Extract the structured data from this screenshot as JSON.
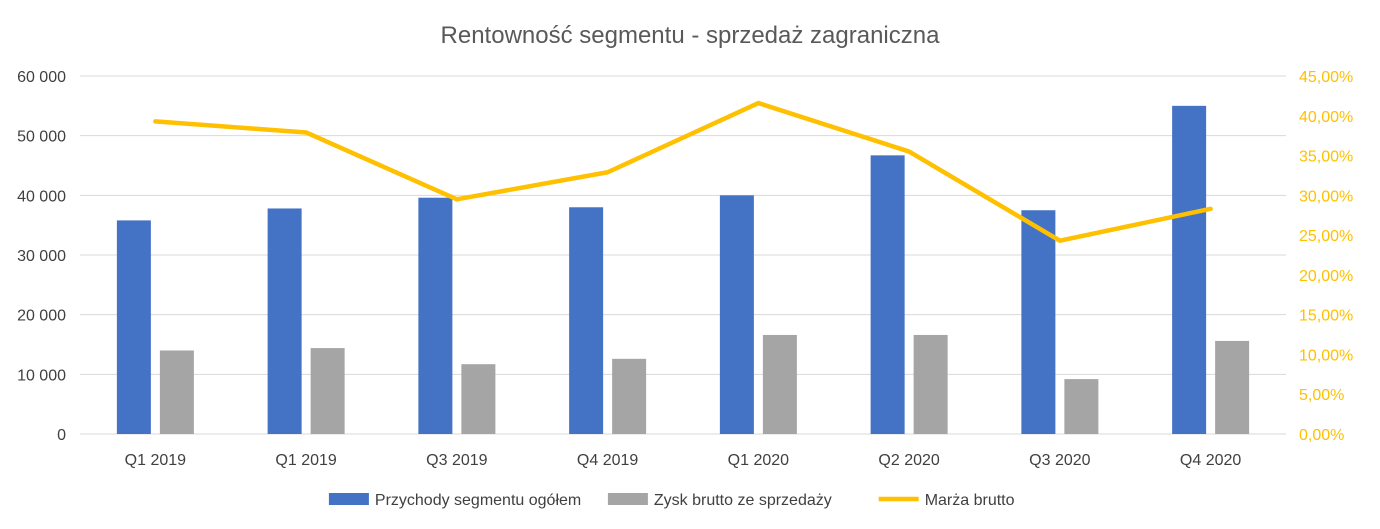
{
  "chart_data": {
    "type": "bar",
    "title": "Rentowność segmentu - sprzedaż zagraniczna",
    "categories": [
      "Q1 2019",
      "Q1 2019",
      "Q3 2019",
      "Q4 2019",
      "Q1 2020",
      "Q2 2020",
      "Q3 2020",
      "Q4 2020"
    ],
    "series": [
      {
        "name": "Przychody segmentu ogółem",
        "kind": "bar",
        "axis": "left",
        "color": "#4472C4",
        "values": [
          35800,
          37800,
          39600,
          38000,
          40000,
          46700,
          37500,
          55000
        ]
      },
      {
        "name": "Zysk brutto ze sprzedaży",
        "kind": "bar",
        "axis": "left",
        "color": "#A5A5A5",
        "values": [
          14000,
          14400,
          11700,
          12600,
          16600,
          16600,
          9200,
          15600
        ]
      },
      {
        "name": "Marża brutto",
        "kind": "line",
        "axis": "right",
        "color": "#FFC000",
        "values": [
          39.3,
          37.9,
          29.5,
          32.9,
          41.6,
          35.5,
          24.3,
          28.3
        ]
      }
    ],
    "y_left": {
      "min": 0,
      "max": 60000,
      "step": 10000,
      "tick_labels": [
        "0",
        "10 000",
        "20 000",
        "30 000",
        "40 000",
        "50 000",
        "60 000"
      ]
    },
    "y_right": {
      "min": 0,
      "max": 45,
      "step": 5,
      "tick_labels": [
        "0,00%",
        "5,00%",
        "10,00%",
        "15,00%",
        "20,00%",
        "25,00%",
        "30,00%",
        "35,00%",
        "40,00%",
        "45,00%"
      ]
    },
    "grid": true,
    "legend_position": "bottom"
  }
}
